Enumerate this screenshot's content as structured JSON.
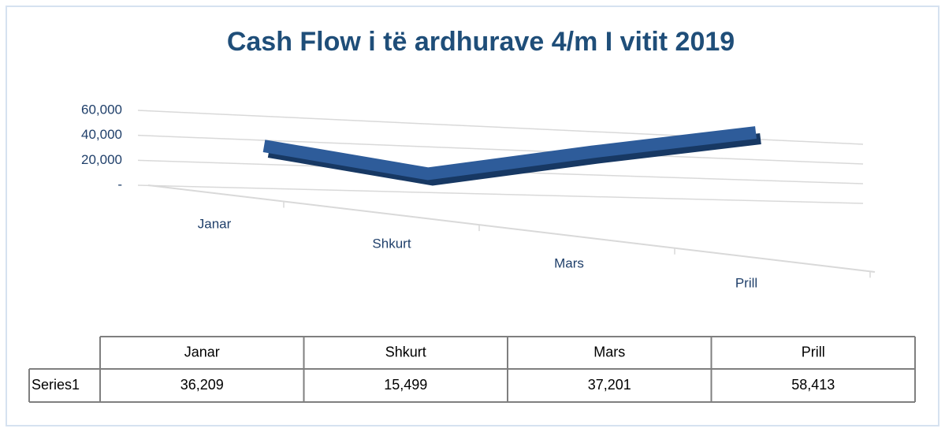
{
  "chart_data": {
    "type": "line3d",
    "title": "Cash Flow i të ardhurave 4/m I vitit 2019",
    "categories": [
      "Janar",
      "Shkurt",
      "Mars",
      "Prill"
    ],
    "series": [
      {
        "name": "Series1",
        "color": "#2e5c9a",
        "values": [
          36209,
          15499,
          37201,
          58413
        ],
        "value_labels": [
          "36,209",
          "15,499",
          "37,201",
          "58,413"
        ]
      }
    ],
    "ylim": [
      0,
      60000
    ],
    "yticks": [
      {
        "value": 0,
        "label": "-"
      },
      {
        "value": 20000,
        "label": "20,000"
      },
      {
        "value": 40000,
        "label": "40,000"
      },
      {
        "value": 60000,
        "label": "60,000"
      }
    ],
    "grid": true
  }
}
